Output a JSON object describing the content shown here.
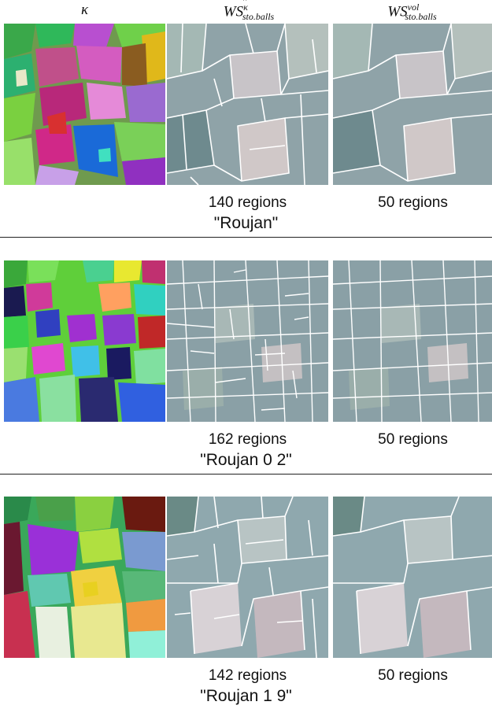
{
  "headers": {
    "col1_symbol": "κ",
    "col2_base": "WS",
    "col2_sup": "κ",
    "col2_sub": "sto.balls",
    "col3_base": "WS",
    "col3_sup": "vol",
    "col3_sub": "sto.balls"
  },
  "rows": [
    {
      "count_kappa": "140 regions",
      "count_vol": "50 regions",
      "caption": "\"Roujan\""
    },
    {
      "count_kappa": "162 regions",
      "count_vol": "50 regions",
      "caption": "\"Roujan 0 2\""
    },
    {
      "count_kappa": "142 regions",
      "count_vol": "50 regions",
      "caption": "\"Roujan 1 9\""
    }
  ]
}
